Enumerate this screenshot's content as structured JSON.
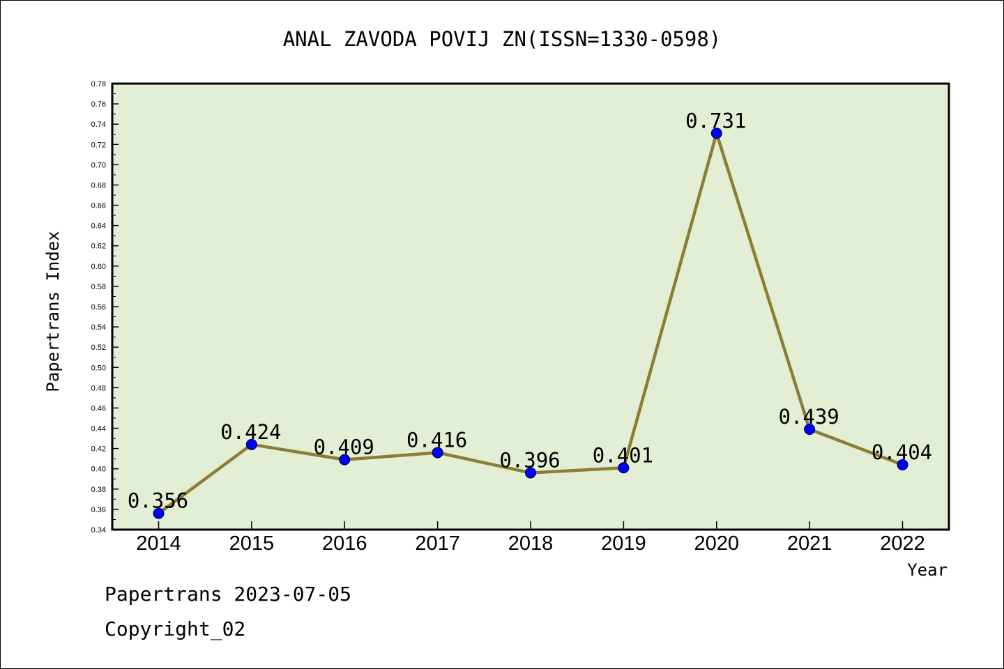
{
  "chart_data": {
    "type": "line",
    "title": "ANAL ZAVODA POVIJ ZN(ISSN=1330-0598)",
    "xlabel": "Year",
    "ylabel": "Papertrans Index",
    "categories": [
      "2014",
      "2015",
      "2016",
      "2017",
      "2018",
      "2019",
      "2020",
      "2021",
      "2022"
    ],
    "series": [
      {
        "values": [
          0.356,
          0.424,
          0.409,
          0.416,
          0.396,
          0.401,
          0.731,
          0.439,
          0.404
        ],
        "labels": [
          "0.356",
          "0.424",
          "0.409",
          "0.416",
          "0.396",
          "0.401",
          "0.731",
          "0.439",
          "0.404"
        ]
      }
    ],
    "ylim": [
      0.34,
      0.78
    ],
    "ytick_step": 0.02,
    "yticks": [
      "0.34",
      "0.36",
      "0.38",
      "0.40",
      "0.42",
      "0.44",
      "0.46",
      "0.48",
      "0.50",
      "0.52",
      "0.54",
      "0.56",
      "0.58",
      "0.60",
      "0.62",
      "0.64",
      "0.66",
      "0.68",
      "0.70",
      "0.72",
      "0.74",
      "0.76",
      "0.78"
    ],
    "grid": false,
    "legend": "none",
    "colors": {
      "plot_background": "#e2efd5",
      "line": "#8c7d36",
      "marker": "#0000ff"
    }
  },
  "footer": {
    "source": "Papertrans 2023-07-05",
    "copyright": "Copyright_02"
  }
}
